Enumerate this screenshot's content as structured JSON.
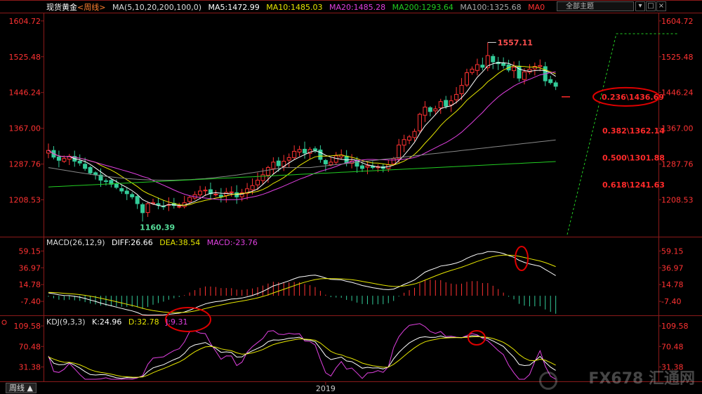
{
  "header": {
    "instrument": "现货黄金",
    "period": "<周线>",
    "ma_params": "MA(5,10,20,200,100,0)",
    "ma5": "MA5:1472.99",
    "ma10": "MA10:1485.03",
    "ma20": "MA20:1485.28",
    "ma200": "MA200:1293.64",
    "ma100": "MA100:1325.68",
    "ma0": "MA0",
    "theme_select": "全部主题"
  },
  "macd_header": {
    "params": "MACD(26,12,9)",
    "diff": "DIFF:26.66",
    "dea": "DEA:38.54",
    "macd": "MACD:-23.76"
  },
  "kdj_header": {
    "params": "KDJ(9,3,3)",
    "k": "K:24.96",
    "d": "D:32.78",
    "j": "J:9.31"
  },
  "period_tab": "周线 ▲",
  "watermark": "FX678 汇通网",
  "colors": {
    "up": "#ff3232",
    "down": "#33cc99",
    "ma5": "#ffffff",
    "ma10": "#e6e600",
    "ma20": "#e040e0",
    "ma200": "#22cc22",
    "ma100": "#999999",
    "fib": "#ff2a2a",
    "annotation": "#dd0000",
    "trend": "#22cc22"
  },
  "chart_data": [
    {
      "type": "candlestick",
      "panel": "price",
      "y_ticks": [
        "1604.72",
        "1525.48",
        "1446.24",
        "1367.00",
        "1287.76",
        "1208.53"
      ],
      "y_tick_values": [
        1604.72,
        1525.48,
        1446.24,
        1367.0,
        1287.76,
        1208.53
      ],
      "ylim": [
        1130,
        1620
      ],
      "x_tick_labels": [
        "2019"
      ],
      "x_tick_index": 53,
      "annotations": {
        "high_label": "1557.11",
        "high_value": 1557.11,
        "low_label": "1160.39",
        "low_value": 1160.39
      },
      "fib_levels": [
        {
          "label": "0.236\\1436.69",
          "value": 1436.69
        },
        {
          "label": "0.382\\1362.14",
          "value": 1362.14
        },
        {
          "label": "0.500\\1301.88",
          "value": 1301.88
        },
        {
          "label": "0.618\\1241.63",
          "value": 1241.63
        }
      ],
      "close_values": [
        1318,
        1303,
        1296,
        1300,
        1305,
        1294,
        1290,
        1278,
        1268,
        1264,
        1252,
        1250,
        1243,
        1236,
        1228,
        1222,
        1215,
        1200,
        1180,
        1200,
        1202,
        1197,
        1194,
        1198,
        1196,
        1194,
        1202,
        1214,
        1220,
        1228,
        1230,
        1222,
        1221,
        1215,
        1225,
        1226,
        1215,
        1224,
        1233,
        1240,
        1252,
        1264,
        1280,
        1292,
        1284,
        1294,
        1302,
        1316,
        1320,
        1312,
        1320,
        1318,
        1298,
        1288,
        1292,
        1306,
        1308,
        1290,
        1294,
        1283,
        1278,
        1284,
        1280,
        1282,
        1278,
        1286,
        1300,
        1330,
        1342,
        1348,
        1360,
        1398,
        1414,
        1404,
        1410,
        1426,
        1416,
        1428,
        1442,
        1462,
        1490,
        1498,
        1508,
        1502,
        1528,
        1514,
        1510,
        1506,
        1496,
        1502,
        1478,
        1492,
        1498,
        1504,
        1506,
        1472,
        1468,
        1460
      ]
    },
    {
      "type": "macd",
      "panel": "macd",
      "y_ticks": [
        "59.15",
        "36.97",
        "14.78",
        "-7.40"
      ],
      "y_tick_values": [
        59.15,
        36.97,
        14.78,
        -7.4
      ],
      "ylim": [
        -24,
        66
      ],
      "diff_last": 26.66,
      "dea_last": 38.54,
      "macd_last": -23.76
    },
    {
      "type": "kdj",
      "panel": "kdj",
      "y_ticks": [
        "109.58",
        "70.48",
        "31.38"
      ],
      "y_tick_values": [
        109.58,
        70.48,
        31.38
      ],
      "ylim": [
        8,
        115
      ],
      "k_last": 24.96,
      "d_last": 32.78,
      "j_last": 9.31
    }
  ]
}
